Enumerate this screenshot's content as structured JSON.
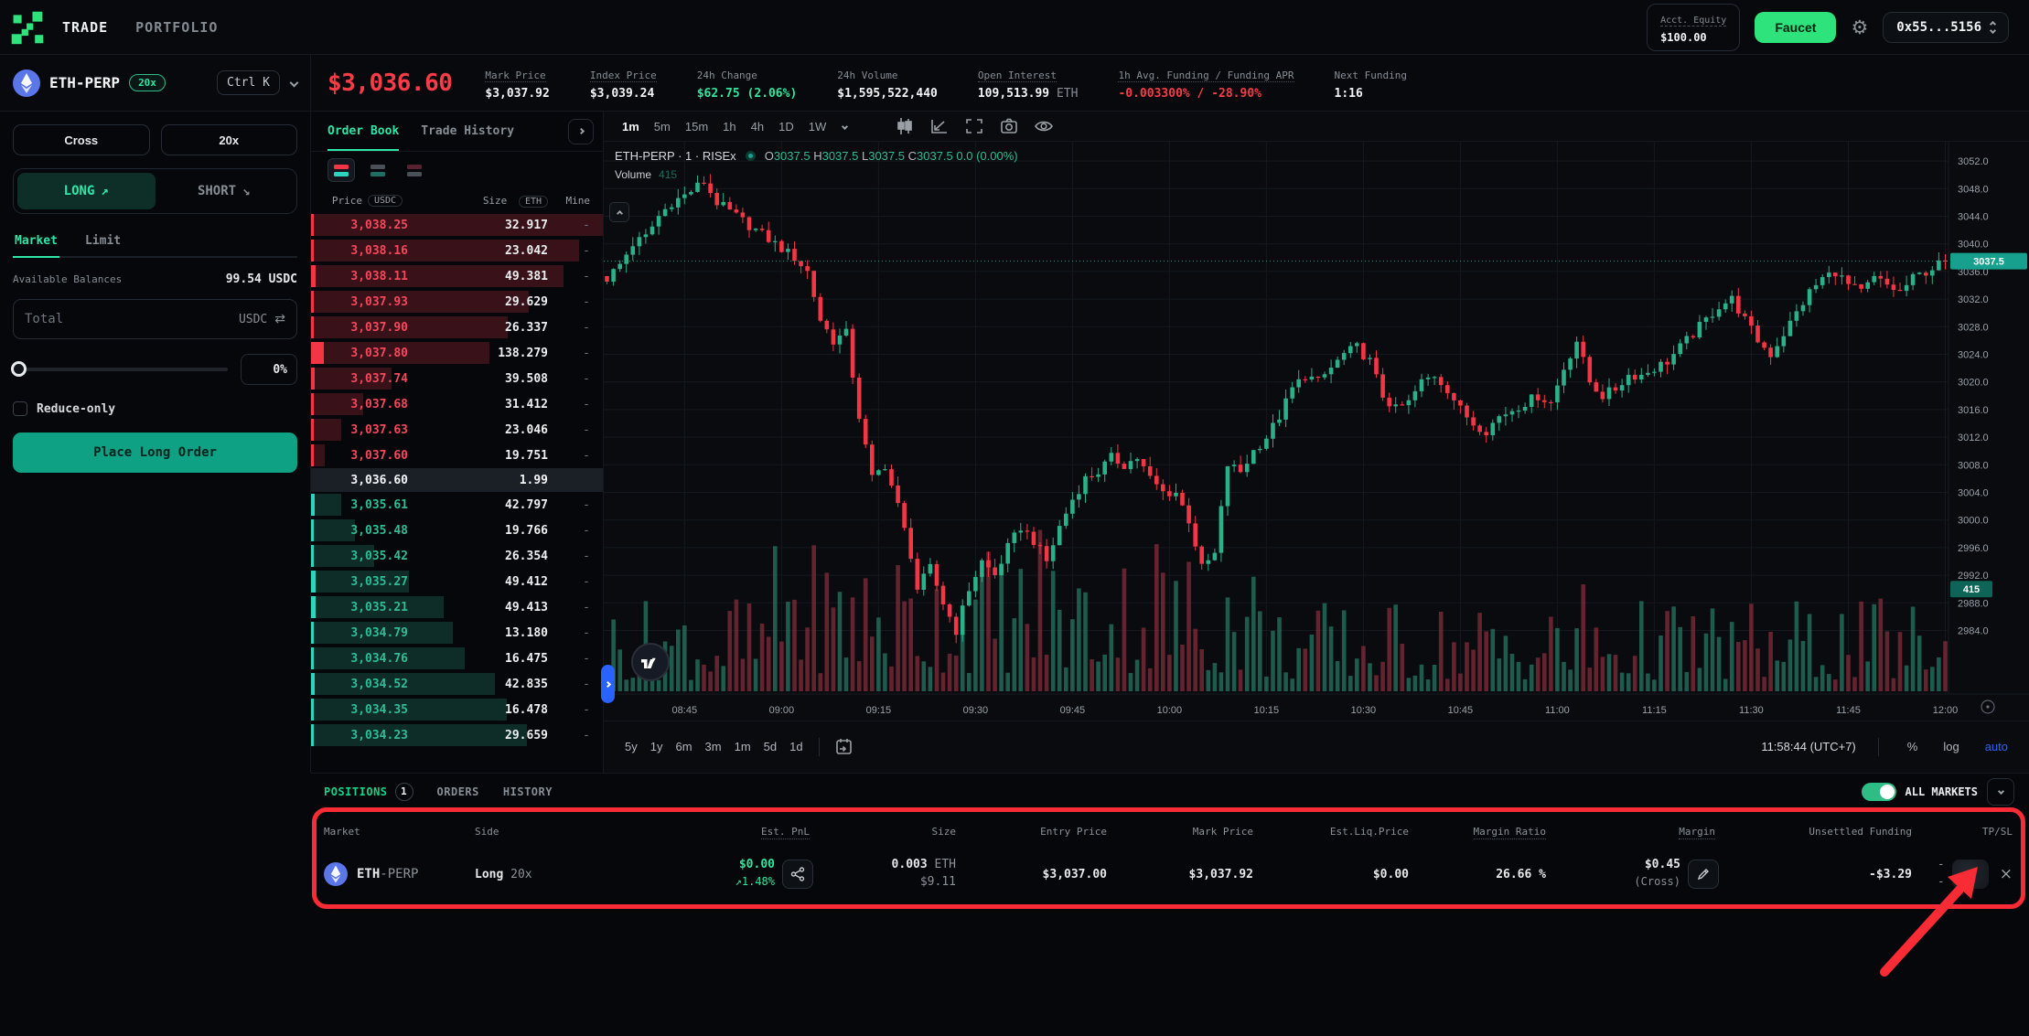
{
  "nav": {
    "links": [
      {
        "label": "TRADE"
      },
      {
        "label": "PORTFOLIO"
      }
    ],
    "acct_equity_label": "Acct. Equity",
    "acct_equity_value": "$100.00",
    "faucet_label": "Faucet",
    "wallet_address": "0x55...5156"
  },
  "market_bar": {
    "pair": "ETH-PERP",
    "leverage_badge": "20x",
    "shortcut": "Ctrl K",
    "last_price": "$3,036.60",
    "stats": [
      {
        "label": "Mark Price",
        "value": "$3,037.92",
        "underline": true,
        "color": "white"
      },
      {
        "label": "Index Price",
        "value": "$3,039.24",
        "underline": true,
        "color": "white"
      },
      {
        "label": "24h Change",
        "value": "$62.75 (2.06%)",
        "underline": false,
        "color": "green"
      },
      {
        "label": "24h Volume",
        "value": "$1,595,522,440",
        "underline": false,
        "color": "white"
      },
      {
        "label": "Open Interest",
        "value": "109,513.99",
        "suffix": " ETH",
        "underline": true,
        "color": "white"
      },
      {
        "label": "1h Avg. Funding / Funding APR",
        "value": "-0.003300% / -28.90%",
        "underline": true,
        "color": "red"
      },
      {
        "label": "Next Funding",
        "value": "1:16",
        "underline": false,
        "color": "white"
      }
    ]
  },
  "order_panel": {
    "margin_mode": "Cross",
    "leverage": "20x",
    "long_label": "LONG",
    "long_arrow": "↗",
    "short_label": "SHORT",
    "short_arrow": "↘",
    "tabs": [
      "Market",
      "Limit"
    ],
    "available_label": "Available Balances",
    "available_value": "99.54 USDC",
    "total_placeholder": "Total",
    "total_currency": "USDC",
    "swap_icon": "⇄",
    "slider_percent": "0%",
    "reduce_only_label": "Reduce-only",
    "submit_label": "Place Long Order"
  },
  "order_book": {
    "tabs": [
      "Order Book",
      "Trade History"
    ],
    "columns": {
      "price": "Price",
      "price_unit": "USDC",
      "size": "Size",
      "size_unit": "ETH",
      "mine": "Mine"
    },
    "asks": [
      {
        "price": "3,038.25",
        "size": "32.917"
      },
      {
        "price": "3,038.16",
        "size": "23.042"
      },
      {
        "price": "3,038.11",
        "size": "49.381"
      },
      {
        "price": "3,037.93",
        "size": "29.629"
      },
      {
        "price": "3,037.90",
        "size": "26.337"
      },
      {
        "price": "3,037.80",
        "size": "138.279"
      },
      {
        "price": "3,037.74",
        "size": "39.508"
      },
      {
        "price": "3,037.68",
        "size": "31.412"
      },
      {
        "price": "3,037.63",
        "size": "23.046"
      },
      {
        "price": "3,037.60",
        "size": "19.751"
      }
    ],
    "mid": {
      "price": "3,036.60",
      "size": "1.99"
    },
    "bids": [
      {
        "price": "3,035.61",
        "size": "42.797"
      },
      {
        "price": "3,035.48",
        "size": "19.766"
      },
      {
        "price": "3,035.42",
        "size": "26.354"
      },
      {
        "price": "3,035.27",
        "size": "49.412"
      },
      {
        "price": "3,035.21",
        "size": "49.413"
      },
      {
        "price": "3,034.79",
        "size": "13.180"
      },
      {
        "price": "3,034.76",
        "size": "16.475"
      },
      {
        "price": "3,034.52",
        "size": "42.835"
      },
      {
        "price": "3,034.35",
        "size": "16.478"
      },
      {
        "price": "3,034.23",
        "size": "29.659"
      }
    ],
    "mine_placeholder": "-"
  },
  "chart": {
    "timeframes": [
      "1m",
      "5m",
      "15m",
      "1h",
      "4h",
      "1D",
      "1W"
    ],
    "active_timeframe": "1m",
    "ranges": [
      "5y",
      "1y",
      "6m",
      "3m",
      "1m",
      "5d",
      "1d"
    ],
    "clock": "11:58:44 (UTC+7)",
    "scale_buttons": [
      "%",
      "log",
      "auto"
    ]
  },
  "chart_data": {
    "type": "candlestick+volume",
    "title": "ETH-PERP · 1 · RISEx",
    "legend_ohlc": {
      "o": "3037.5",
      "h": "3037.5",
      "l": "3037.5",
      "c": "3037.5",
      "change": "0.0 (0.00%)"
    },
    "volume_label": "Volume",
    "volume_value": "415",
    "volume_tag_price": 2990,
    "current_price": 3037.5,
    "ylim": [
      2981,
      3054
    ],
    "price_ticks": [
      3052,
      3048,
      3044,
      3040,
      3036,
      3032,
      3028,
      3024,
      3020,
      3016,
      3012,
      3008,
      3004,
      3000,
      2996,
      2992,
      2988,
      2984
    ],
    "minutes": 208,
    "start_time": "08:33",
    "time_ticks": [
      {
        "label": "08:45",
        "m": 12
      },
      {
        "label": "09:00",
        "m": 27
      },
      {
        "label": "09:15",
        "m": 42
      },
      {
        "label": "09:30",
        "m": 57
      },
      {
        "label": "09:45",
        "m": 72
      },
      {
        "label": "10:00",
        "m": 87
      },
      {
        "label": "10:15",
        "m": 102
      },
      {
        "label": "10:30",
        "m": 117
      },
      {
        "label": "10:45",
        "m": 132
      },
      {
        "label": "11:00",
        "m": 147
      },
      {
        "label": "11:15",
        "m": 162
      },
      {
        "label": "11:30",
        "m": 177
      },
      {
        "label": "11:45",
        "m": 192
      },
      {
        "label": "12:00",
        "m": 207
      }
    ],
    "keyframes": [
      [
        0,
        3035
      ],
      [
        2,
        3037
      ],
      [
        4,
        3040
      ],
      [
        6,
        3041
      ],
      [
        8,
        3044
      ],
      [
        10,
        3046
      ],
      [
        12,
        3047
      ],
      [
        15,
        3049
      ],
      [
        17,
        3046
      ],
      [
        20,
        3044
      ],
      [
        23,
        3042
      ],
      [
        26,
        3040
      ],
      [
        29,
        3038
      ],
      [
        31,
        3036
      ],
      [
        33,
        3029
      ],
      [
        35,
        3026
      ],
      [
        37,
        3027
      ],
      [
        39,
        3015
      ],
      [
        41,
        3006
      ],
      [
        43,
        3008
      ],
      [
        45,
        3002
      ],
      [
        47,
        2995
      ],
      [
        48,
        2990
      ],
      [
        50,
        2993
      ],
      [
        52,
        2988
      ],
      [
        54,
        2984
      ],
      [
        56,
        2990
      ],
      [
        58,
        2994
      ],
      [
        60,
        2992
      ],
      [
        62,
        2996
      ],
      [
        64,
        2999
      ],
      [
        66,
        2997
      ],
      [
        68,
        2994
      ],
      [
        70,
        2999
      ],
      [
        72,
        3003
      ],
      [
        74,
        3006
      ],
      [
        76,
        3007
      ],
      [
        78,
        3009
      ],
      [
        80,
        3008
      ],
      [
        82,
        3009
      ],
      [
        84,
        3006
      ],
      [
        86,
        3004
      ],
      [
        88,
        3004
      ],
      [
        90,
        3000
      ],
      [
        92,
        2993
      ],
      [
        94,
        2995
      ],
      [
        96,
        3008
      ],
      [
        98,
        3007
      ],
      [
        100,
        3010
      ],
      [
        102,
        3012
      ],
      [
        104,
        3015
      ],
      [
        106,
        3019
      ],
      [
        108,
        3021
      ],
      [
        110,
        3020
      ],
      [
        112,
        3022
      ],
      [
        114,
        3024
      ],
      [
        116,
        3025
      ],
      [
        118,
        3023
      ],
      [
        120,
        3018
      ],
      [
        122,
        3016
      ],
      [
        124,
        3017
      ],
      [
        126,
        3020
      ],
      [
        128,
        3021
      ],
      [
        130,
        3019
      ],
      [
        132,
        3016
      ],
      [
        134,
        3014
      ],
      [
        136,
        3013
      ],
      [
        138,
        3015
      ],
      [
        140,
        3016
      ],
      [
        142,
        3017
      ],
      [
        144,
        3018
      ],
      [
        146,
        3017
      ],
      [
        148,
        3022
      ],
      [
        150,
        3026
      ],
      [
        152,
        3020
      ],
      [
        154,
        3018
      ],
      [
        156,
        3019
      ],
      [
        158,
        3021
      ],
      [
        160,
        3021
      ],
      [
        162,
        3022
      ],
      [
        164,
        3023
      ],
      [
        166,
        3025
      ],
      [
        168,
        3027
      ],
      [
        170,
        3029
      ],
      [
        172,
        3031
      ],
      [
        174,
        3032
      ],
      [
        176,
        3029
      ],
      [
        178,
        3026
      ],
      [
        180,
        3024
      ],
      [
        182,
        3027
      ],
      [
        184,
        3030
      ],
      [
        186,
        3033
      ],
      [
        188,
        3035
      ],
      [
        190,
        3036
      ],
      [
        192,
        3034
      ],
      [
        194,
        3033
      ],
      [
        196,
        3035
      ],
      [
        198,
        3034
      ],
      [
        200,
        3033
      ],
      [
        202,
        3035
      ],
      [
        204,
        3036
      ],
      [
        206,
        3037
      ],
      [
        207,
        3037.5
      ]
    ],
    "colors": {
      "up": "#2bb18a",
      "down": "#f23645",
      "grid": "#141920",
      "price_line": "#2a9d8f"
    }
  },
  "positions": {
    "tabs": [
      {
        "label": "POSITIONS",
        "badge": "1"
      },
      {
        "label": "ORDERS"
      },
      {
        "label": "HISTORY"
      }
    ],
    "all_markets_label": "ALL MARKETS",
    "headers": [
      {
        "label": "Market",
        "dotted": false
      },
      {
        "label": "Side",
        "dotted": false
      },
      {
        "label": "Est. PnL",
        "dotted": true
      },
      {
        "label": "Size",
        "dotted": false
      },
      {
        "label": "Entry Price",
        "dotted": false
      },
      {
        "label": "Mark Price",
        "dotted": false
      },
      {
        "label": "Est.Liq.Price",
        "dotted": false
      },
      {
        "label": "Margin Ratio",
        "dotted": true
      },
      {
        "label": "Margin",
        "dotted": true
      },
      {
        "label": "Unsettled Funding",
        "dotted": false
      },
      {
        "label": "TP/SL",
        "dotted": false
      }
    ],
    "row": {
      "market": "ETH",
      "market_suffix": "-PERP",
      "side": "Long",
      "side_leverage": "20x",
      "pnl": "$0.00",
      "pnl_pct": "↗1.48%",
      "size": "0.003",
      "size_unit": "ETH",
      "size_usd": "$9.11",
      "entry": "$3,037.00",
      "mark": "$3,037.92",
      "liq": "$0.00",
      "ratio": "26.66 %",
      "margin": "$0.45",
      "margin_mode": "(Cross)",
      "funding": "-$3.29",
      "tp": "-",
      "sl": "-"
    }
  },
  "annotation": {
    "color": "#f92c35"
  }
}
